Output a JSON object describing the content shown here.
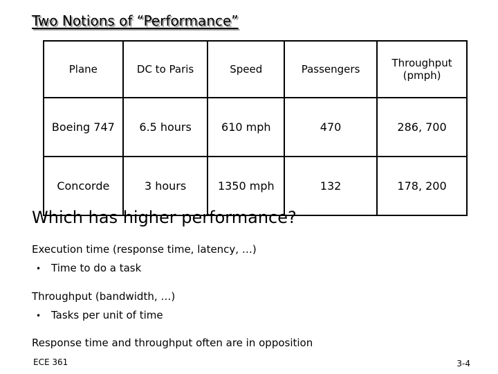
{
  "title": "Two Notions of “Performance”",
  "table": {
    "headers": [
      "Plane",
      "DC to Paris",
      "Speed",
      "Passengers",
      "Throughput (pmph)"
    ],
    "rows": [
      [
        "Boeing 747",
        "6.5 hours",
        "610 mph",
        "470",
        "286, 700"
      ],
      [
        "Concorde",
        "3 hours",
        "1350 mph",
        "132",
        "178, 200"
      ]
    ]
  },
  "question": "Which has higher performance?",
  "points": {
    "execution_heading": "Execution time (response time, latency, …)",
    "execution_bullet": "Time to do a task",
    "throughput_heading": "Throughput (bandwidth, …)",
    "throughput_bullet": "Tasks per unit of time",
    "conclusion": "Response time and throughput often are in opposition"
  },
  "bullet_glyph": "•",
  "footer": {
    "course": "ECE 361",
    "page": "3-4"
  }
}
